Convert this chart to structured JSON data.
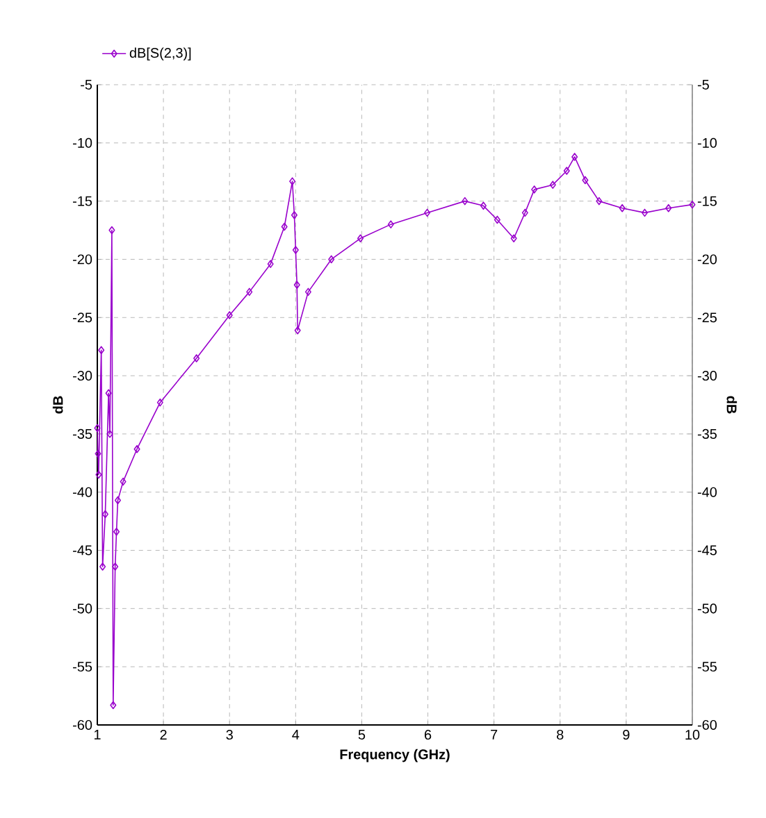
{
  "chart_data": {
    "type": "line",
    "xlabel": "Frequency (GHz)",
    "ylabel": "dB",
    "y2label": "dB",
    "xlim": [
      1,
      10
    ],
    "xticks": [
      1,
      2,
      3,
      4,
      5,
      6,
      7,
      8,
      9,
      10
    ],
    "ylim": [
      -60,
      -5
    ],
    "yticks": [
      -60,
      -55,
      -50,
      -45,
      -40,
      -35,
      -30,
      -25,
      -20,
      -15,
      -10,
      -5
    ],
    "y2lim": [
      -60,
      -5
    ],
    "y2ticks": [
      -60,
      -55,
      -50,
      -45,
      -40,
      -35,
      -30,
      -25,
      -20,
      -15,
      -10,
      -5
    ],
    "grid": true,
    "legend": "top left",
    "marker": "diamond",
    "line_style": "solid",
    "series": [
      {
        "name": "dB[S(2,3)]",
        "color": "#9900cc",
        "x": [
          1.0,
          1.01,
          1.02,
          1.06,
          1.08,
          1.12,
          1.17,
          1.19,
          1.22,
          1.24,
          1.27,
          1.29,
          1.31,
          1.39,
          1.6,
          1.95,
          2.5,
          3.0,
          3.3,
          3.62,
          3.83,
          3.95,
          3.98,
          4.0,
          4.02,
          4.03,
          4.19,
          4.54,
          4.98,
          5.44,
          5.99,
          6.56,
          6.84,
          7.05,
          7.3,
          7.47,
          7.61,
          7.89,
          8.1,
          8.22,
          8.38,
          8.59,
          8.94,
          9.28,
          9.64,
          10.0
        ],
        "values": [
          -34.5,
          -36.7,
          -38.5,
          -27.8,
          -46.4,
          -41.9,
          -31.5,
          -35,
          -17.5,
          -58.3,
          -46.4,
          -43.4,
          -40.7,
          -39.1,
          -36.3,
          -32.3,
          -28.5,
          -24.8,
          -22.8,
          -20.4,
          -17.2,
          -13.3,
          -16.2,
          -19.2,
          -22.2,
          -26.1,
          -22.8,
          -20,
          -18.2,
          -17.0,
          -16.0,
          -15.0,
          -15.4,
          -16.6,
          -18.2,
          -16.0,
          -14.0,
          -13.6,
          -12.4,
          -11.2,
          -13.2,
          -15,
          -15.6,
          -16.0,
          -15.6,
          -15.3
        ]
      }
    ]
  }
}
